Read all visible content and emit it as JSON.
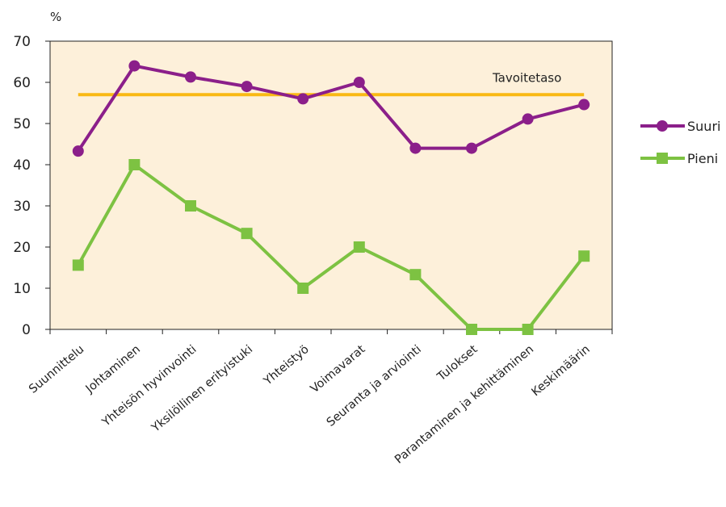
{
  "chart_data": {
    "type": "line",
    "unit_label": "%",
    "ylim": [
      0,
      70
    ],
    "yticks": [
      0,
      10,
      20,
      30,
      40,
      50,
      60,
      70
    ],
    "categories": [
      "Suunnittelu",
      "Johtaminen",
      "Yhteisön hyvinvointi",
      "Yksilöllinen erityistuki",
      "Yhteistyö",
      "Voimavarat",
      "Seuranta ja arviointi",
      "Tulokset",
      "Parantaminen ja kehittäminen",
      "Keskimäärin"
    ],
    "series": [
      {
        "name": "Suuri",
        "marker": "circle",
        "color": "#8b1f8a",
        "values": [
          43.3,
          64,
          61.3,
          59,
          56,
          60,
          44,
          44,
          51.1,
          54.6
        ]
      },
      {
        "name": "Pieni",
        "marker": "square",
        "color": "#7dc242",
        "values": [
          15.6,
          40,
          30,
          23.3,
          10,
          20,
          13.3,
          0,
          0,
          17.8
        ]
      }
    ],
    "reference_line": {
      "label": "Tavoitetaso",
      "value": 57,
      "color": "#f9b914"
    },
    "plot_background": "#fdf0da",
    "legend_position": "right"
  }
}
